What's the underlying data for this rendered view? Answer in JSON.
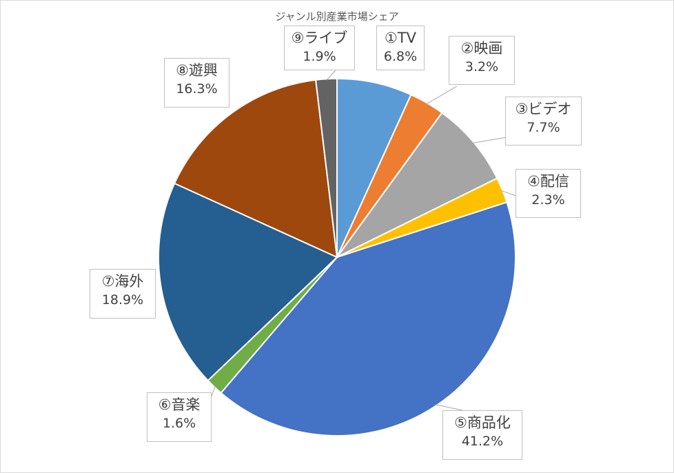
{
  "chart_data": {
    "type": "pie",
    "title": "ジャンル別産業市場シェア",
    "slices": [
      {
        "name": "①TV",
        "value": 6.8,
        "label": "6.8%",
        "color": "#5b9bd5"
      },
      {
        "name": "②映画",
        "value": 3.2,
        "label": "3.2%",
        "color": "#ed7d31"
      },
      {
        "name": "③ビデオ",
        "value": 7.7,
        "label": "7.7%",
        "color": "#a5a5a5"
      },
      {
        "name": "④配信",
        "value": 2.3,
        "label": "2.3%",
        "color": "#ffc000"
      },
      {
        "name": "⑤商品化",
        "value": 41.2,
        "label": "41.2%",
        "color": "#4472c4"
      },
      {
        "name": "⑥音楽",
        "value": 1.6,
        "label": "1.6%",
        "color": "#70ad47"
      },
      {
        "name": "⑦海外",
        "value": 18.9,
        "label": "18.9%",
        "color": "#255e91"
      },
      {
        "name": "⑧遊興",
        "value": 16.3,
        "label": "16.3%",
        "color": "#9e480e"
      },
      {
        "name": "⑨ライブ",
        "value": 1.9,
        "label": "1.9%",
        "color": "#636363"
      }
    ]
  }
}
